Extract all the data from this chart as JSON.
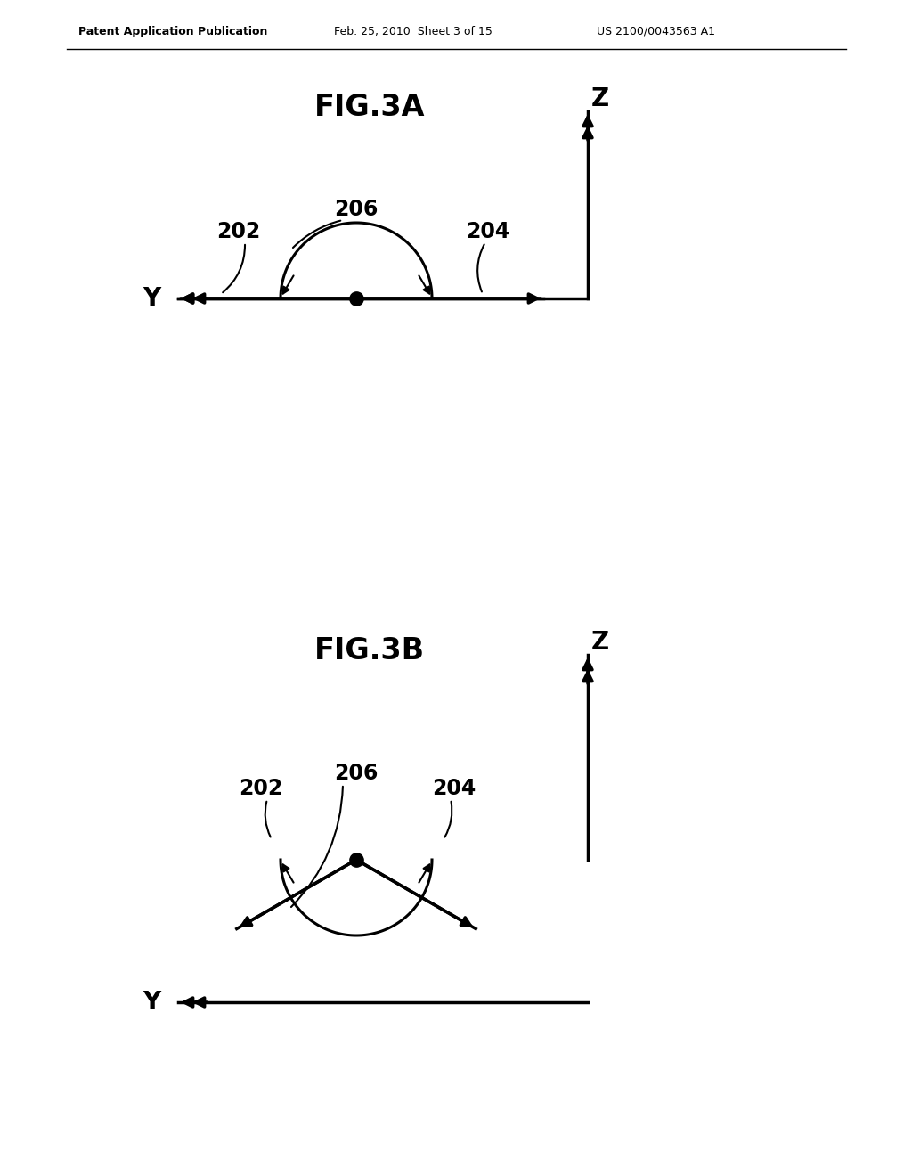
{
  "bg_color": "#ffffff",
  "text_color": "#000000",
  "header_left": "Patent Application Publication",
  "header_center": "Feb. 25, 2010  Sheet 3 of 15",
  "header_right": "US 2100/0043563 A1",
  "fig3a_title": "FIG.3A",
  "fig3b_title": "FIG.3B",
  "label_202": "202",
  "label_204": "204",
  "label_206": "206",
  "label_Y": "Y",
  "label_Z": "Z"
}
